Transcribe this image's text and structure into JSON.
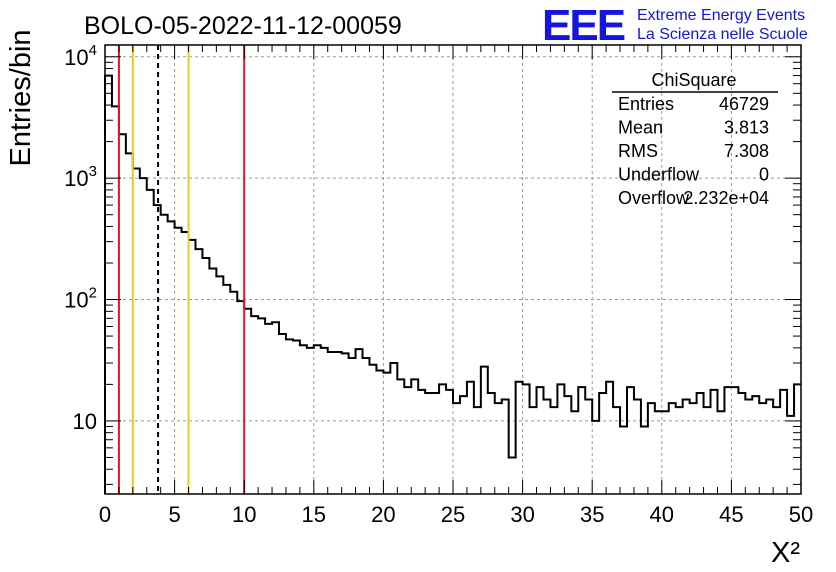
{
  "chart_data": {
    "type": "histogram",
    "title": "BOLO-05-2022-11-12-00059",
    "xlabel": "X²",
    "ylabel": "Entries/bin",
    "xlim": [
      0,
      50
    ],
    "ylim": [
      2.5,
      12500
    ],
    "y_scale": "log",
    "grid": true,
    "bin_width": 0.5,
    "x_ticks": [
      "0",
      "5",
      "10",
      "15",
      "20",
      "25",
      "30",
      "35",
      "40",
      "45",
      "50"
    ],
    "y_tick_labels": [
      {
        "value": 10,
        "base": "10",
        "exp": ""
      },
      {
        "value": 100,
        "base": "10",
        "exp": "2"
      },
      {
        "value": 1000,
        "base": "10",
        "exp": "3"
      },
      {
        "value": 10000,
        "base": "10",
        "exp": "4"
      }
    ],
    "counts": [
      7000,
      3900,
      2300,
      1600,
      1200,
      1000,
      800,
      600,
      500,
      440,
      390,
      360,
      310,
      260,
      220,
      180,
      155,
      132,
      116,
      97,
      84,
      73,
      70,
      63,
      65,
      52,
      47,
      46,
      42,
      40,
      42,
      40,
      37,
      37,
      36,
      33,
      39,
      33,
      29,
      26,
      25,
      30,
      22,
      19,
      22,
      18,
      17,
      17,
      20,
      18,
      14,
      16,
      21,
      13,
      28,
      17,
      14,
      15,
      5,
      21,
      20,
      13,
      19,
      15,
      13,
      20,
      16,
      12,
      19,
      15,
      10,
      17,
      21,
      13,
      9,
      19,
      15,
      9,
      14,
      12,
      12,
      14,
      13,
      15,
      14,
      17,
      13,
      18,
      12,
      19,
      19,
      17,
      15,
      16,
      14,
      15,
      13,
      18,
      11,
      20
    ],
    "vertical_lines": [
      {
        "x": 1,
        "color": "#e8141e",
        "style": "solid"
      },
      {
        "x": 2,
        "color": "#f6c51e",
        "style": "solid"
      },
      {
        "x": 3.813,
        "color": "#000000",
        "style": "dashed"
      },
      {
        "x": 6,
        "color": "#f6c51e",
        "style": "solid"
      },
      {
        "x": 10,
        "color": "#e8141e",
        "style": "solid"
      }
    ],
    "stats_box": {
      "title": "ChiSquare",
      "rows": [
        {
          "label": "Entries",
          "value": "46729"
        },
        {
          "label": "Mean",
          "value": "3.813"
        },
        {
          "label": "RMS",
          "value": "7.308"
        },
        {
          "label": "Underflow",
          "value": "0"
        },
        {
          "label": "Overflow",
          "value": "2.232e+04"
        }
      ]
    }
  },
  "logo": {
    "mark": "EEE",
    "line1": "Extreme Energy Events",
    "line2": "La Scienza nelle Scuole",
    "color": "#1515e0"
  }
}
